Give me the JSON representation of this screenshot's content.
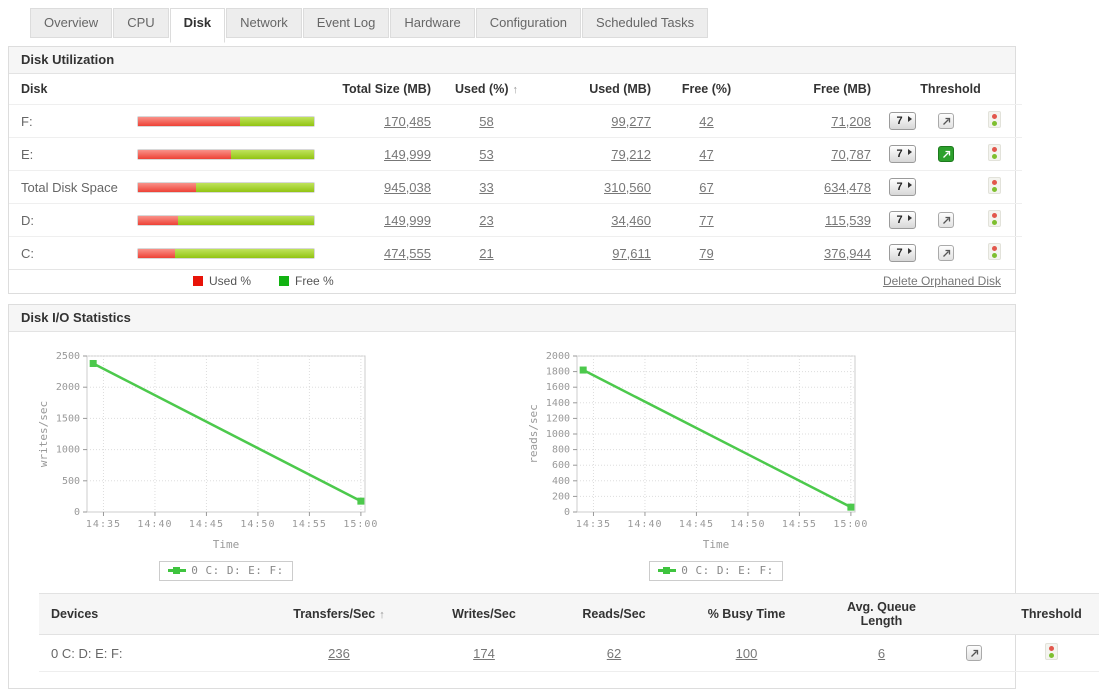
{
  "tabs": [
    {
      "label": "Overview"
    },
    {
      "label": "CPU"
    },
    {
      "label": "Disk"
    },
    {
      "label": "Network"
    },
    {
      "label": "Event Log"
    },
    {
      "label": "Hardware"
    },
    {
      "label": "Configuration"
    },
    {
      "label": "Scheduled Tasks"
    }
  ],
  "disk_utilization": {
    "title": "Disk Utilization",
    "header": {
      "disk": "Disk",
      "total": "Total Size (MB)",
      "used_pct": "Used (%)",
      "sort_arrow": "↑",
      "used_mb": "Used (MB)",
      "free_pct": "Free (%)",
      "free_mb": "Free (MB)",
      "threshold": "Threshold"
    },
    "rows": [
      {
        "disk": "F:",
        "total": "170,485",
        "used_pct": "58",
        "used_mb": "99,277",
        "free_pct": "42",
        "free_mb": "71,208",
        "used_pct_num": 58,
        "history_label": "7",
        "arrow": "gray"
      },
      {
        "disk": "E:",
        "total": "149,999",
        "used_pct": "53",
        "used_mb": "79,212",
        "free_pct": "47",
        "free_mb": "70,787",
        "used_pct_num": 53,
        "history_label": "7",
        "arrow": "green"
      },
      {
        "disk": "Total Disk Space",
        "total": "945,038",
        "used_pct": "33",
        "used_mb": "310,560",
        "free_pct": "67",
        "free_mb": "634,478",
        "used_pct_num": 33,
        "history_label": "7",
        "arrow": "none"
      },
      {
        "disk": "D:",
        "total": "149,999",
        "used_pct": "23",
        "used_mb": "34,460",
        "free_pct": "77",
        "free_mb": "115,539",
        "used_pct_num": 23,
        "history_label": "7",
        "arrow": "gray"
      },
      {
        "disk": "C:",
        "total": "474,555",
        "used_pct": "21",
        "used_mb": "97,611",
        "free_pct": "79",
        "free_mb": "376,944",
        "used_pct_num": 21,
        "history_label": "7",
        "arrow": "gray"
      }
    ],
    "legend": {
      "used_label": "Used %",
      "used_color": "#e81309",
      "free_label": "Free %",
      "free_color": "#12b212"
    },
    "footer_link": "Delete Orphaned Disk"
  },
  "disk_io": {
    "title": "Disk I/O Statistics",
    "table": {
      "header": {
        "devices": "Devices",
        "transfers": "Transfers/Sec",
        "sort_arrow": "↑",
        "writes": "Writes/Sec",
        "reads": "Reads/Sec",
        "busy": "% Busy Time",
        "queue": "Avg. Queue Length",
        "threshold": "Threshold"
      },
      "rows": [
        {
          "device": "0 C: D: E: F:",
          "transfers": "236",
          "writes": "174",
          "reads": "62",
          "busy": "100",
          "queue": "6"
        }
      ]
    }
  },
  "chart_data": [
    {
      "type": "line",
      "title": "",
      "ylabel": "writes/sec",
      "xlabel": "Time",
      "ylim": [
        0,
        2500
      ],
      "ytick_step": 500,
      "x_tick_labels": [
        "14:35",
        "14:40",
        "14:45",
        "14:50",
        "14:55",
        "15:00"
      ],
      "x_tick_minutes": [
        875,
        880,
        885,
        890,
        895,
        900
      ],
      "x_domain_minutes": [
        873.4,
        900.4
      ],
      "grid": true,
      "legend_position": "bottom",
      "legend_label": "0 C: D: E: F:",
      "line_color": "#4cc94c",
      "series": [
        {
          "name": "0 C: D: E: F:",
          "points": [
            {
              "t": 874,
              "time": "14:34",
              "y": 2380
            },
            {
              "t": 900,
              "time": "15:00",
              "y": 174
            }
          ]
        }
      ]
    },
    {
      "type": "line",
      "title": "",
      "ylabel": "reads/sec",
      "xlabel": "Time",
      "ylim": [
        0,
        2000
      ],
      "ytick_step": 200,
      "x_tick_labels": [
        "14:35",
        "14:40",
        "14:45",
        "14:50",
        "14:55",
        "15:00"
      ],
      "x_tick_minutes": [
        875,
        880,
        885,
        890,
        895,
        900
      ],
      "x_domain_minutes": [
        873.4,
        900.4
      ],
      "grid": true,
      "legend_position": "bottom",
      "legend_label": "0 C: D: E: F:",
      "line_color": "#4cc94c",
      "series": [
        {
          "name": "0 C: D: E: F:",
          "points": [
            {
              "t": 874,
              "time": "14:34",
              "y": 1820
            },
            {
              "t": 900,
              "time": "15:00",
              "y": 62
            }
          ]
        }
      ]
    }
  ]
}
